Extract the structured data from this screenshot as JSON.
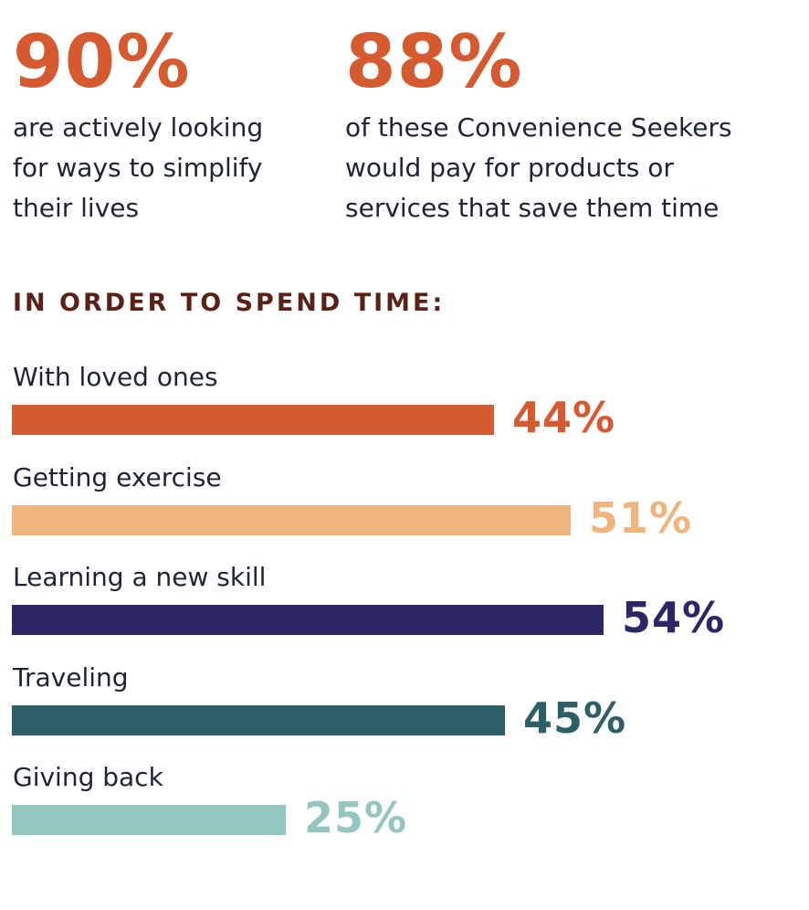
{
  "stats": [
    {
      "value": "90%",
      "text": "are actively looking for ways to simplify their lives",
      "lines": [
        "are actively looking",
        "for ways to simplify",
        "their lives"
      ]
    },
    {
      "value": "88%",
      "text": "of these Convenience Seekers would pay for products or services that save them time",
      "lines": [
        "of these Convenience Seekers",
        "would pay for products or",
        "services that save them time"
      ]
    }
  ],
  "colors": {
    "accent": "#d65a30",
    "heading": "#5a2217",
    "text": "#1e2435"
  },
  "chart_data": {
    "type": "bar",
    "orientation": "horizontal",
    "title": "IN ORDER TO SPEND TIME:",
    "categories": [
      "With loved ones",
      "Getting exercise",
      "Learning a new skill",
      "Traveling",
      "Giving back"
    ],
    "values": [
      44,
      51,
      54,
      45,
      25
    ],
    "value_labels": [
      "44%",
      "51%",
      "54%",
      "45%",
      "25%"
    ],
    "colors": [
      "#d65a30",
      "#f0b47d",
      "#2b2665",
      "#2f5f66",
      "#93c6c0"
    ],
    "xlim": [
      0,
      72
    ],
    "grid": false
  }
}
